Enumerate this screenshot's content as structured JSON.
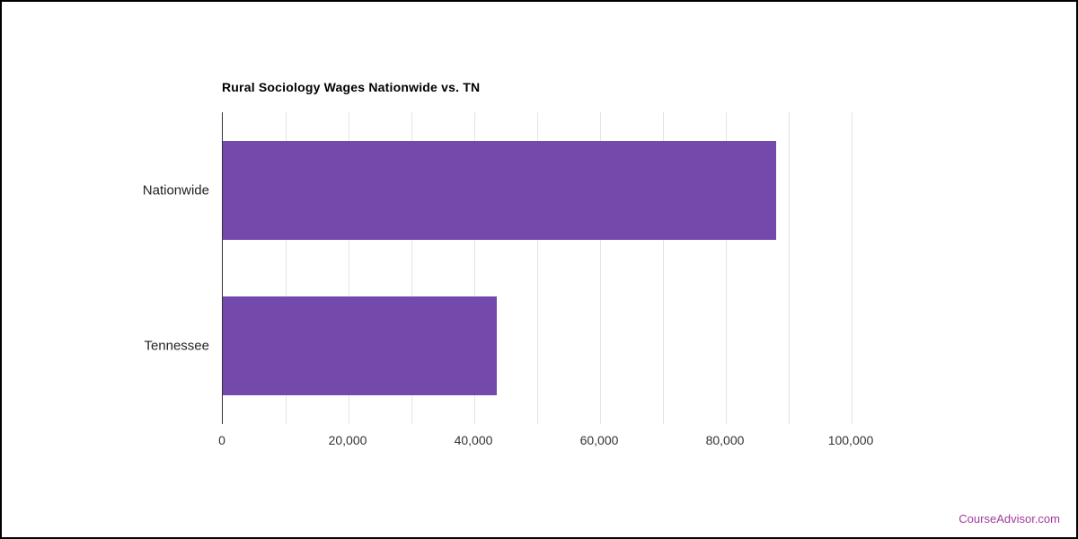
{
  "chart_data": {
    "type": "bar",
    "orientation": "horizontal",
    "title": "Rural Sociology Wages Nationwide vs. TN",
    "categories": [
      "Nationwide",
      "Tennessee"
    ],
    "values": [
      88000,
      43500
    ],
    "xlim": [
      0,
      110000
    ],
    "x_tick_values": [
      0,
      20000,
      40000,
      60000,
      80000,
      100000
    ],
    "x_tick_labels": [
      "0",
      "20,000",
      "40,000",
      "60,000",
      "80,000",
      "100,000"
    ],
    "grid_step": 10000,
    "grid_max": 100000,
    "grid_on": true,
    "legend": false,
    "bar_color": "#7349ac",
    "gridline_color": "#e4e4e4",
    "axis_line_color": "#333333"
  },
  "watermark": {
    "text": "CourseAdvisor.com",
    "color": "#a23a9e"
  }
}
